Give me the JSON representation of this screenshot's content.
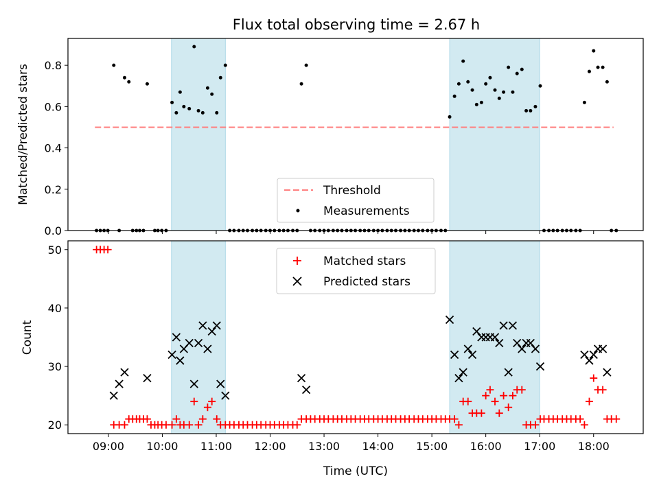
{
  "title": "Flux total observing time = 2.67 h",
  "x_axis": {
    "label": "Time (UTC)",
    "range_hours": [
      8.25,
      18.92
    ],
    "tick_hours": [
      9,
      10,
      11,
      12,
      13,
      14,
      15,
      16,
      17,
      18
    ],
    "tick_labels": [
      "09:00",
      "10:00",
      "11:00",
      "12:00",
      "13:00",
      "14:00",
      "15:00",
      "16:00",
      "17:00",
      "18:00"
    ]
  },
  "colors": {
    "shade": "#add8e6",
    "threshold": "#ff7f7f",
    "measurements": "#000000",
    "matched": "#ff0000",
    "predicted": "#000000"
  },
  "chart_data": [
    {
      "type": "scatter",
      "ylabel": "Matched/Predicted stars",
      "ylim": [
        0,
        0.93
      ],
      "yticks": [
        0.0,
        0.2,
        0.4,
        0.6,
        0.8
      ],
      "ytick_labels": [
        "0.0",
        "0.2",
        "0.4",
        "0.6",
        "0.8"
      ],
      "shaded_spans_hours": [
        [
          10.17,
          11.17
        ],
        [
          15.33,
          17.0
        ]
      ],
      "threshold": {
        "name": "Threshold",
        "value": 0.5,
        "x_range_hours": [
          8.75,
          18.37
        ]
      },
      "legend": {
        "position": "lower center",
        "entries": [
          "Threshold",
          "Measurements"
        ]
      },
      "series": [
        {
          "name": "Measurements",
          "x_hours": [
            8.78,
            8.85,
            8.92,
            8.99,
            9.1,
            9.2,
            9.3,
            9.38,
            9.45,
            9.52,
            9.58,
            9.65,
            9.72,
            9.86,
            9.92,
            9.99,
            10.07,
            10.18,
            10.26,
            10.33,
            10.4,
            10.5,
            10.59,
            10.67,
            10.75,
            10.84,
            10.92,
            11.01,
            11.08,
            11.17,
            11.25,
            11.33,
            11.42,
            11.5,
            11.58,
            11.67,
            11.75,
            11.83,
            11.92,
            12.0,
            12.08,
            12.17,
            12.25,
            12.33,
            12.42,
            12.5,
            12.58,
            12.67,
            12.75,
            12.83,
            12.92,
            13.0,
            13.08,
            13.17,
            13.25,
            13.33,
            13.42,
            13.5,
            13.58,
            13.67,
            13.75,
            13.83,
            13.92,
            14.0,
            14.08,
            14.17,
            14.25,
            14.33,
            14.42,
            14.5,
            14.58,
            14.67,
            14.75,
            14.83,
            14.92,
            15.0,
            15.08,
            15.17,
            15.25,
            15.33,
            15.42,
            15.5,
            15.58,
            15.67,
            15.75,
            15.83,
            15.92,
            16.0,
            16.08,
            16.17,
            16.25,
            16.33,
            16.42,
            16.5,
            16.58,
            16.67,
            16.75,
            16.83,
            16.92,
            17.01,
            17.08,
            17.17,
            17.25,
            17.33,
            17.42,
            17.5,
            17.58,
            17.67,
            17.75,
            17.83,
            17.92,
            18.0,
            18.08,
            18.17,
            18.25,
            18.33,
            18.42
          ],
          "values": [
            0,
            0,
            0,
            0,
            0.8,
            0,
            0.74,
            0.72,
            0,
            0,
            0,
            0,
            0.71,
            0,
            0,
            0,
            0,
            0.62,
            0.57,
            0.67,
            0.6,
            0.59,
            0.89,
            0.58,
            0.57,
            0.69,
            0.66,
            0.57,
            0.74,
            0.8,
            0,
            0,
            0,
            0,
            0,
            0,
            0,
            0,
            0,
            0,
            0,
            0,
            0,
            0,
            0,
            0,
            0.71,
            0.8,
            0,
            0,
            0,
            0,
            0,
            0,
            0,
            0,
            0,
            0,
            0,
            0,
            0,
            0,
            0,
            0,
            0,
            0,
            0,
            0,
            0,
            0,
            0,
            0,
            0,
            0,
            0,
            0,
            0,
            0,
            0,
            0.55,
            0.65,
            0.71,
            0.82,
            0.72,
            0.68,
            0.61,
            0.62,
            0.71,
            0.74,
            0.68,
            0.64,
            0.67,
            0.79,
            0.67,
            0.76,
            0.78,
            0.58,
            0.58,
            0.6,
            0.7,
            0,
            0,
            0,
            0,
            0,
            0,
            0,
            0,
            0,
            0.62,
            0.77,
            0.87,
            0.79,
            0.79,
            0.72,
            0,
            0
          ]
        }
      ]
    },
    {
      "type": "scatter",
      "ylabel": "Count",
      "ylim": [
        18.5,
        51.5
      ],
      "yticks": [
        20,
        30,
        40,
        50
      ],
      "ytick_labels": [
        "20",
        "30",
        "40",
        "50"
      ],
      "shaded_spans_hours": [
        [
          10.17,
          11.17
        ],
        [
          15.33,
          17.0
        ]
      ],
      "legend": {
        "position": "upper center",
        "entries": [
          "Matched stars",
          "Predicted stars"
        ]
      },
      "series": [
        {
          "name": "Matched stars",
          "marker": "plus",
          "x_hours": [
            8.78,
            8.85,
            8.92,
            8.99,
            9.1,
            9.2,
            9.3,
            9.38,
            9.45,
            9.52,
            9.58,
            9.65,
            9.72,
            9.79,
            9.86,
            9.92,
            9.99,
            10.07,
            10.18,
            10.26,
            10.33,
            10.4,
            10.5,
            10.59,
            10.67,
            10.75,
            10.84,
            10.92,
            11.01,
            11.08,
            11.17,
            11.25,
            11.33,
            11.42,
            11.5,
            11.58,
            11.67,
            11.75,
            11.83,
            11.92,
            12.0,
            12.08,
            12.17,
            12.25,
            12.33,
            12.42,
            12.5,
            12.58,
            12.67,
            12.75,
            12.83,
            12.92,
            13.0,
            13.08,
            13.17,
            13.25,
            13.33,
            13.42,
            13.5,
            13.58,
            13.67,
            13.75,
            13.83,
            13.92,
            14.0,
            14.08,
            14.17,
            14.25,
            14.33,
            14.42,
            14.5,
            14.58,
            14.67,
            14.75,
            14.83,
            14.92,
            15.0,
            15.08,
            15.17,
            15.25,
            15.33,
            15.42,
            15.5,
            15.58,
            15.67,
            15.75,
            15.83,
            15.92,
            16.0,
            16.08,
            16.17,
            16.25,
            16.33,
            16.42,
            16.5,
            16.58,
            16.67,
            16.75,
            16.83,
            16.92,
            17.01,
            17.08,
            17.17,
            17.25,
            17.33,
            17.42,
            17.5,
            17.58,
            17.67,
            17.75,
            17.83,
            17.92,
            18.0,
            18.08,
            18.17,
            18.25,
            18.33,
            18.42
          ],
          "values": [
            50,
            50,
            50,
            50,
            20,
            20,
            20,
            21,
            21,
            21,
            21,
            21,
            21,
            20,
            20,
            20,
            20,
            20,
            20,
            21,
            20,
            20,
            20,
            24,
            20,
            21,
            23,
            24,
            21,
            20,
            20,
            20,
            20,
            20,
            20,
            20,
            20,
            20,
            20,
            20,
            20,
            20,
            20,
            20,
            20,
            20,
            20,
            21,
            21,
            21,
            21,
            21,
            21,
            21,
            21,
            21,
            21,
            21,
            21,
            21,
            21,
            21,
            21,
            21,
            21,
            21,
            21,
            21,
            21,
            21,
            21,
            21,
            21,
            21,
            21,
            21,
            21,
            21,
            21,
            21,
            21,
            21,
            20,
            24,
            24,
            22,
            22,
            22,
            25,
            26,
            24,
            22,
            25,
            23,
            25,
            26,
            26,
            20,
            20,
            20,
            21,
            21,
            21,
            21,
            21,
            21,
            21,
            21,
            21,
            21,
            20,
            24,
            28,
            26,
            26,
            21,
            21,
            21
          ]
        },
        {
          "name": "Predicted stars",
          "marker": "x",
          "x_hours": [
            9.1,
            9.2,
            9.3,
            9.72,
            10.18,
            10.26,
            10.33,
            10.4,
            10.5,
            10.59,
            10.67,
            10.75,
            10.84,
            10.92,
            11.01,
            11.08,
            11.17,
            12.58,
            12.67,
            15.33,
            15.42,
            15.5,
            15.58,
            15.67,
            15.75,
            15.83,
            15.92,
            16.0,
            16.08,
            16.17,
            16.25,
            16.33,
            16.42,
            16.5,
            16.58,
            16.67,
            16.75,
            16.83,
            16.92,
            17.01,
            17.83,
            17.92,
            18.0,
            18.08,
            18.17,
            18.25
          ],
          "values": [
            25,
            27,
            29,
            28,
            32,
            35,
            31,
            33,
            34,
            27,
            34,
            37,
            33,
            36,
            37,
            27,
            25,
            28,
            26,
            38,
            32,
            28,
            29,
            33,
            32,
            36,
            35,
            35,
            35,
            35,
            34,
            37,
            29,
            37,
            34,
            33,
            34,
            34,
            33,
            30,
            32,
            31,
            32,
            33,
            33,
            29
          ]
        }
      ]
    }
  ]
}
